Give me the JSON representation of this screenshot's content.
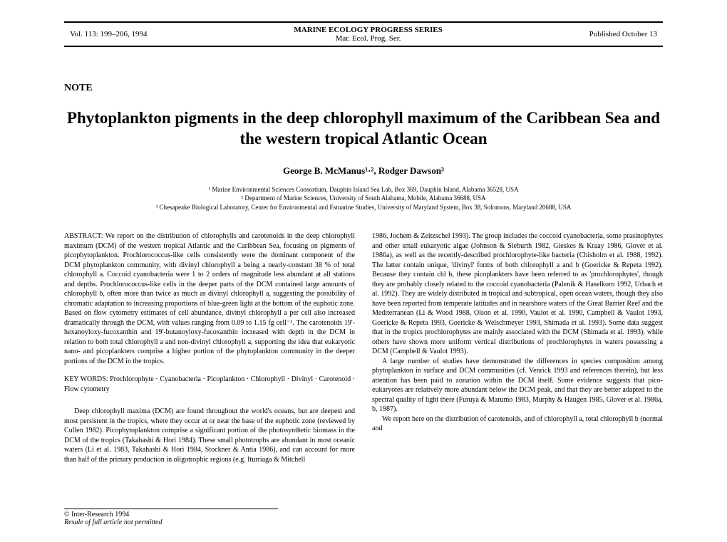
{
  "header": {
    "left": "Vol. 113: 199–206, 1994",
    "center_top": "MARINE ECOLOGY PROGRESS SERIES",
    "center_bottom": "Mar. Ecol. Prog. Ser.",
    "right": "Published October 13"
  },
  "note": "NOTE",
  "title": "Phytoplankton pigments in the deep chlorophyll maximum of the Caribbean Sea and the western tropical Atlantic Ocean",
  "authors": "George B. McManus¹·², Rodger Dawson³",
  "affil1": "¹ Marine Environmental Sciences Consortium, Dauphin Island Sea Lab, Box 369, Dauphin Island, Alabama 36528, USA",
  "affil2": "² Department of Marine Sciences, University of South Alabama, Mobile, Alabama 36688, USA",
  "affil3": "³ Chesapeake Biological Laboratory, Center for Environmental and Estuarine Studies, University of Maryland System, Box 38, Solomons, Maryland 20688, USA",
  "abstract_label": "ABSTRACT: ",
  "abstract": "We report on the distribution of chlorophylls and carotenoids in the deep chlorophyll maximum (DCM) of the western tropical Atlantic and the Caribbean Sea, focusing on pigments of picophytoplankton. Prochlorococcus-like cells consistently were the dominant component of the DCM phytoplankton community, with divinyl chlorophyll a being a nearly-constant 38 % of total chlorophyll a. Coccoid cyanobacteria were 1 to 2 orders of magnitude less abundant at all stations and depths. Prochlorococcus-like cells in the deeper parts of the DCM contained large amounts of chlorophyll b, often more than twice as much as divinyl chlorophyll a, suggesting the possibility of chromatic adaptation to increasing proportions of blue-green light at the bottom of the euphotic zone. Based on flow cytometry estimates of cell abundance, divinyl chlorophyll a per cell also increased dramatically through the DCM, with values ranging from 0.09 to 1.15 fg cell⁻¹. The carotenoids 19'-hexanoyloxy-fucoxanthin and 19'-butanoyloxy-fucoxanthin increased with depth in the DCM in relation to both total chlorophyll a and non-divinyl chlorophyll a, supporting the idea that eukaryotic nano- and picoplankters comprise a higher portion of the phytoplankton community in the deeper portions of the DCM in the tropics.",
  "keywords_label": "KEY WORDS: ",
  "keywords": "Prochlorophyte · Cyanobacteria · Picoplankton · Chlorophyll · Divinyl · Carotenoid · Flow cytometry",
  "left_body": "Deep chlorophyll maxima (DCM) are found throughout the world's oceans, but are deepest and most persistent in the tropics, where they occur at or near the base of the euphotic zone (reviewed by Cullen 1982). Picophytoplankton comprise a significant portion of the photosynthetic biomass in the DCM of the tropics (Takahashi & Hori 1984). These small phototrophs are abundant in most oceanic waters (Li et al. 1983, Takahashi & Hori 1984, Stockner & Antia 1986), and can account for more than half of the primary production in oligotrophic regions (e.g. Iturriaga & Mitchell",
  "right_1": "1986, Jochem & Zeitzschel 1993). The group includes the coccoid cyanobacteria, some prasinophytes and other small eukaryotic algae (Johnson & Sieburth 1982, Gieskes & Kraay 1986, Glover et al. 1986a), as well as the recently-described prochlorophyte-like bacteria (Chisholm et al. 1988, 1992). The latter contain unique, 'divinyl' forms of both chlorophyll a and b (Goericke & Repeta 1992). Because they contain chl b, these picoplankters have been referred to as 'prochlorophytes', though they are probably closely related to the coccoid cyanobacteria (Palenik & Haselkorn 1992, Urbach et al. 1992). They are widely distributed in tropical and subtropical, open ocean waters, though they also have been reported from temperate latitudes and in nearshore waters of the Great Barrier Reef and the Mediterranean (Li & Wood 1988, Olson et al. 1990, Vaulot et al. 1990, Campbell & Vaulot 1993, Goericke & Repeta 1993, Goericke & Welschmeyer 1993, Shimada et al. 1993). Some data suggest that in the tropics prochlorophytes are mainly associated with the DCM (Shimada et al. 1993), while others have shown more uniform vertical distributions of prochlorophytes in waters possessing a DCM (Campbell & Vaulot 1993).",
  "right_2": "A large number of studies have demonstrated the differences in species composition among phytoplankton in surface and DCM communities (cf. Venrick 1993 and references therein), but less attention has been paid to zonation within the DCM itself. Some evidence suggests that pico-eukaryotes are relatively more abundant below the DCM peak, and that they are better adapted to the spectral quality of light there (Furuya & Marumo 1983, Murphy & Haugen 1985, Glover et al. 1986a, b, 1987).",
  "right_3": "We report here on the distribution of carotenoids, and of chlorophyll a, total chlorophyll b (normal and",
  "footer1": "© Inter-Research 1994",
  "footer2": "Resale of full article not permitted"
}
